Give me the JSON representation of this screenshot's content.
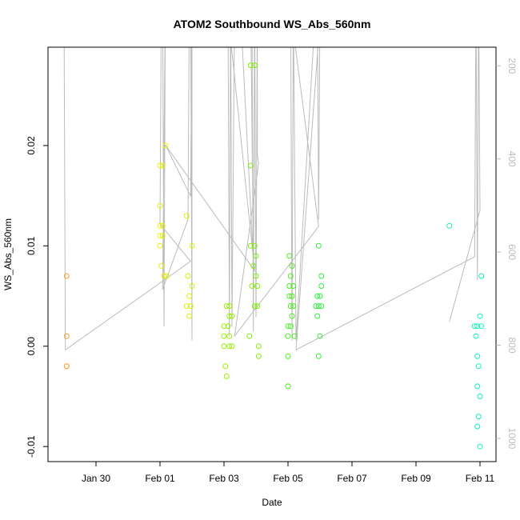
{
  "chart_data": {
    "type": "scatter",
    "title": "ATOM2 Southbound WS_Abs_560nm",
    "xlabel": "Date",
    "ylabel": "WS_Abs_560nm",
    "xlim": [
      "2017-01-28T12:00",
      "2017-02-11T12:00"
    ],
    "ylim": [
      -0.0115,
      0.0298
    ],
    "y2lim": [
      1050,
      160
    ],
    "x_ticks": [
      {
        "label": "Jan 30",
        "x": "2017-01-30"
      },
      {
        "label": "Feb 01",
        "x": "2017-02-01"
      },
      {
        "label": "Feb 03",
        "x": "2017-02-03"
      },
      {
        "label": "Feb 05",
        "x": "2017-02-05"
      },
      {
        "label": "Feb 07",
        "x": "2017-02-07"
      },
      {
        "label": "Feb 09",
        "x": "2017-02-09"
      },
      {
        "label": "Feb 11",
        "x": "2017-02-11"
      }
    ],
    "y_ticks": [
      {
        "label": "-0.01",
        "v": -0.01
      },
      {
        "label": "0.00",
        "v": 0.0
      },
      {
        "label": "0.01",
        "v": 0.01
      },
      {
        "label": "0.02",
        "v": 0.02
      }
    ],
    "y2_ticks": [
      {
        "label": "200",
        "v": 200
      },
      {
        "label": "400",
        "v": 400
      },
      {
        "label": "600",
        "v": 600
      },
      {
        "label": "800",
        "v": 800
      },
      {
        "label": "1000",
        "v": 1000
      }
    ],
    "grid": false,
    "colors": {
      "points_palette": [
        "#ff8c00",
        "#ffff00",
        "#7cfc00",
        "#00ff7f",
        "#00ffc8"
      ],
      "track": "#bbbbbb",
      "axis": "#000000",
      "right_axis_text": "#bbbbbb"
    },
    "points": [
      {
        "x": "2017-01-29T02:00",
        "y": 0.007,
        "color": "#ff9a2e"
      },
      {
        "x": "2017-01-29T02:00",
        "y": 0.001,
        "color": "#ff9a2e"
      },
      {
        "x": "2017-01-29T02:00",
        "y": -0.002,
        "color": "#ff9a2e"
      },
      {
        "x": "2017-01-29T02:00",
        "y": -0.002,
        "color": "#ff9a2e"
      },
      {
        "x": "2017-02-01T00:00",
        "y": 0.018,
        "color": "#e8f000"
      },
      {
        "x": "2017-02-01T02:00",
        "y": 0.018,
        "color": "#e8f000"
      },
      {
        "x": "2017-02-01T04:00",
        "y": 0.02,
        "color": "#e8f000"
      },
      {
        "x": "2017-02-01T00:00",
        "y": 0.014,
        "color": "#e8f000"
      },
      {
        "x": "2017-02-01T00:00",
        "y": 0.012,
        "color": "#e8f000"
      },
      {
        "x": "2017-02-01T02:00",
        "y": 0.012,
        "color": "#e8f000"
      },
      {
        "x": "2017-02-01T00:00",
        "y": 0.011,
        "color": "#e8f000"
      },
      {
        "x": "2017-02-01T02:00",
        "y": 0.011,
        "color": "#e8f000"
      },
      {
        "x": "2017-02-01T00:00",
        "y": 0.01,
        "color": "#e8f000"
      },
      {
        "x": "2017-02-01T01:00",
        "y": 0.008,
        "color": "#e8f000"
      },
      {
        "x": "2017-02-01T03:00",
        "y": 0.007,
        "color": "#e8f000"
      },
      {
        "x": "2017-02-01T05:00",
        "y": 0.007,
        "color": "#e8f000"
      },
      {
        "x": "2017-02-01T20:00",
        "y": 0.013,
        "color": "#dcf000"
      },
      {
        "x": "2017-02-02T00:00",
        "y": 0.01,
        "color": "#dcf000"
      },
      {
        "x": "2017-02-01T21:00",
        "y": 0.007,
        "color": "#dcf000"
      },
      {
        "x": "2017-02-02T00:00",
        "y": 0.006,
        "color": "#dcf000"
      },
      {
        "x": "2017-02-01T22:00",
        "y": 0.005,
        "color": "#dcf000"
      },
      {
        "x": "2017-02-01T20:00",
        "y": 0.004,
        "color": "#dcf000"
      },
      {
        "x": "2017-02-01T23:00",
        "y": 0.004,
        "color": "#dcf000"
      },
      {
        "x": "2017-02-01T22:00",
        "y": 0.003,
        "color": "#dcf000"
      },
      {
        "x": "2017-02-03T02:00",
        "y": 0.004,
        "color": "#9aee00"
      },
      {
        "x": "2017-02-03T04:00",
        "y": 0.004,
        "color": "#9aee00"
      },
      {
        "x": "2017-02-03T04:00",
        "y": 0.003,
        "color": "#9aee00"
      },
      {
        "x": "2017-02-03T06:00",
        "y": 0.003,
        "color": "#9aee00"
      },
      {
        "x": "2017-02-03T00:00",
        "y": 0.002,
        "color": "#9aee00"
      },
      {
        "x": "2017-02-03T03:00",
        "y": 0.002,
        "color": "#9aee00"
      },
      {
        "x": "2017-02-03T00:00",
        "y": 0.001,
        "color": "#9aee00"
      },
      {
        "x": "2017-02-03T04:00",
        "y": 0.001,
        "color": "#9aee00"
      },
      {
        "x": "2017-02-03T00:00",
        "y": 0.0,
        "color": "#9aee00"
      },
      {
        "x": "2017-02-03T04:00",
        "y": 0.0,
        "color": "#9aee00"
      },
      {
        "x": "2017-02-03T06:00",
        "y": 0.0,
        "color": "#9aee00"
      },
      {
        "x": "2017-02-03T01:00",
        "y": -0.002,
        "color": "#9aee00"
      },
      {
        "x": "2017-02-03T02:00",
        "y": -0.003,
        "color": "#9aee00"
      },
      {
        "x": "2017-02-03T20:00",
        "y": 0.028,
        "color": "#7ef000"
      },
      {
        "x": "2017-02-03T23:00",
        "y": 0.028,
        "color": "#7ef000"
      },
      {
        "x": "2017-02-03T20:00",
        "y": 0.018,
        "color": "#7ef000"
      },
      {
        "x": "2017-02-03T20:00",
        "y": 0.01,
        "color": "#7ef000"
      },
      {
        "x": "2017-02-03T23:00",
        "y": 0.01,
        "color": "#7ef000"
      },
      {
        "x": "2017-02-04T00:00",
        "y": 0.009,
        "color": "#7ef000"
      },
      {
        "x": "2017-02-03T22:00",
        "y": 0.008,
        "color": "#7ef000"
      },
      {
        "x": "2017-02-04T00:00",
        "y": 0.007,
        "color": "#7ef000"
      },
      {
        "x": "2017-02-03T21:00",
        "y": 0.006,
        "color": "#7ef000"
      },
      {
        "x": "2017-02-04T01:00",
        "y": 0.006,
        "color": "#7ef000"
      },
      {
        "x": "2017-02-03T23:00",
        "y": 0.004,
        "color": "#7ef000"
      },
      {
        "x": "2017-02-04T01:00",
        "y": 0.004,
        "color": "#7ef000"
      },
      {
        "x": "2017-02-03T19:00",
        "y": 0.001,
        "color": "#7ef000"
      },
      {
        "x": "2017-02-04T02:00",
        "y": 0.0,
        "color": "#7ef000"
      },
      {
        "x": "2017-02-04T02:00",
        "y": -0.001,
        "color": "#7ef000"
      },
      {
        "x": "2017-02-05T01:00",
        "y": 0.009,
        "color": "#4aee20"
      },
      {
        "x": "2017-02-05T03:00",
        "y": 0.008,
        "color": "#4aee20"
      },
      {
        "x": "2017-02-05T02:00",
        "y": 0.007,
        "color": "#4aee20"
      },
      {
        "x": "2017-02-05T01:00",
        "y": 0.006,
        "color": "#4aee20"
      },
      {
        "x": "2017-02-05T04:00",
        "y": 0.006,
        "color": "#4aee20"
      },
      {
        "x": "2017-02-05T01:00",
        "y": 0.005,
        "color": "#4aee20"
      },
      {
        "x": "2017-02-05T03:00",
        "y": 0.005,
        "color": "#4aee20"
      },
      {
        "x": "2017-02-05T02:00",
        "y": 0.004,
        "color": "#4aee20"
      },
      {
        "x": "2017-02-05T04:00",
        "y": 0.004,
        "color": "#4aee20"
      },
      {
        "x": "2017-02-05T03:00",
        "y": 0.003,
        "color": "#4aee20"
      },
      {
        "x": "2017-02-05T00:00",
        "y": 0.002,
        "color": "#4aee20"
      },
      {
        "x": "2017-02-05T02:00",
        "y": 0.002,
        "color": "#4aee20"
      },
      {
        "x": "2017-02-05T00:00",
        "y": 0.001,
        "color": "#4aee20"
      },
      {
        "x": "2017-02-05T05:00",
        "y": 0.001,
        "color": "#4aee20"
      },
      {
        "x": "2017-02-05T00:00",
        "y": -0.001,
        "color": "#4aee20"
      },
      {
        "x": "2017-02-05T00:00",
        "y": -0.004,
        "color": "#4aee20"
      },
      {
        "x": "2017-02-05T23:00",
        "y": 0.01,
        "color": "#30ee40"
      },
      {
        "x": "2017-02-06T01:00",
        "y": 0.007,
        "color": "#30ee40"
      },
      {
        "x": "2017-02-06T01:00",
        "y": 0.006,
        "color": "#30ee40"
      },
      {
        "x": "2017-02-05T22:00",
        "y": 0.005,
        "color": "#30ee40"
      },
      {
        "x": "2017-02-06T00:00",
        "y": 0.005,
        "color": "#30ee40"
      },
      {
        "x": "2017-02-05T21:00",
        "y": 0.004,
        "color": "#30ee40"
      },
      {
        "x": "2017-02-05T23:00",
        "y": 0.004,
        "color": "#30ee40"
      },
      {
        "x": "2017-02-06T01:00",
        "y": 0.004,
        "color": "#30ee40"
      },
      {
        "x": "2017-02-05T22:00",
        "y": 0.003,
        "color": "#30ee40"
      },
      {
        "x": "2017-02-06T00:00",
        "y": 0.001,
        "color": "#30ee40"
      },
      {
        "x": "2017-02-05T23:00",
        "y": -0.001,
        "color": "#30ee40"
      },
      {
        "x": "2017-02-10T01:00",
        "y": 0.012,
        "color": "#18f0a0"
      },
      {
        "x": "2017-02-10T20:00",
        "y": 0.002,
        "color": "#10f0c0"
      },
      {
        "x": "2017-02-10T22:00",
        "y": 0.002,
        "color": "#10f0c0"
      },
      {
        "x": "2017-02-11T01:00",
        "y": 0.002,
        "color": "#10f0c0"
      },
      {
        "x": "2017-02-11T00:00",
        "y": 0.003,
        "color": "#10f0c0"
      },
      {
        "x": "2017-02-11T01:00",
        "y": 0.007,
        "color": "#10f0c0"
      },
      {
        "x": "2017-02-10T21:00",
        "y": 0.001,
        "color": "#10f0c0"
      },
      {
        "x": "2017-02-10T22:00",
        "y": -0.001,
        "color": "#10f0c0"
      },
      {
        "x": "2017-02-10T23:00",
        "y": -0.002,
        "color": "#10f0c0"
      },
      {
        "x": "2017-02-10T22:00",
        "y": -0.004,
        "color": "#10f0c0"
      },
      {
        "x": "2017-02-11T00:00",
        "y": -0.005,
        "color": "#10f0c0"
      },
      {
        "x": "2017-02-10T23:00",
        "y": -0.007,
        "color": "#10f0c0"
      },
      {
        "x": "2017-02-10T22:00",
        "y": -0.008,
        "color": "#10f0c0"
      },
      {
        "x": "2017-02-11T00:00",
        "y": -0.01,
        "color": "#10f0c0"
      }
    ],
    "track": [
      [
        "2017-01-29T00:00",
        60
      ],
      [
        "2017-01-29T01:00",
        810
      ],
      [
        "2017-02-01T23:00",
        620
      ],
      [
        "2017-02-01T00:00",
        540
      ],
      [
        "2017-02-01T01:00",
        60
      ],
      [
        "2017-02-01T02:00",
        60
      ],
      [
        "2017-02-01T03:00",
        760
      ],
      [
        "2017-02-01T04:00",
        60
      ],
      [
        "2017-02-01T02:00",
        680
      ],
      [
        "2017-02-01T21:00",
        530
      ],
      [
        "2017-02-01T22:00",
        60
      ],
      [
        "2017-02-01T23:00",
        60
      ],
      [
        "2017-02-02T00:00",
        790
      ],
      [
        "2017-02-02T00:00",
        60
      ],
      [
        "2017-02-01T23:00",
        480
      ],
      [
        "2017-02-01T04:00",
        370
      ],
      [
        "2017-02-03T23:00",
        640
      ],
      [
        "2017-02-03T02:00",
        60
      ],
      [
        "2017-02-03T03:00",
        60
      ],
      [
        "2017-02-03T04:00",
        780
      ],
      [
        "2017-02-03T05:00",
        60
      ],
      [
        "2017-02-03T06:00",
        760
      ],
      [
        "2017-02-03T08:00",
        60
      ],
      [
        "2017-02-03T12:00",
        60
      ],
      [
        "2017-02-03T22:00",
        620
      ],
      [
        "2017-02-03T20:00",
        60
      ],
      [
        "2017-02-03T21:00",
        60
      ],
      [
        "2017-02-03T22:00",
        770
      ],
      [
        "2017-02-03T23:00",
        60
      ],
      [
        "2017-02-04T00:00",
        740
      ],
      [
        "2017-02-04T01:00",
        60
      ],
      [
        "2017-02-04T01:00",
        390
      ],
      [
        "2017-02-04T02:00",
        410
      ],
      [
        "2017-02-03T08:00",
        780
      ],
      [
        "2017-02-05T23:00",
        545
      ],
      [
        "2017-02-05T01:00",
        60
      ],
      [
        "2017-02-05T02:00",
        60
      ],
      [
        "2017-02-05T03:00",
        790
      ],
      [
        "2017-02-05T04:00",
        60
      ],
      [
        "2017-02-05T06:00",
        790
      ],
      [
        "2017-02-05T21:00",
        60
      ],
      [
        "2017-02-05T22:00",
        60
      ],
      [
        "2017-02-05T23:00",
        530
      ],
      [
        "2017-02-06T00:00",
        60
      ],
      [
        "2017-02-06T01:00",
        60
      ],
      [
        "2017-02-05T06:00",
        810
      ],
      [
        "2017-02-10T20:00",
        610
      ],
      [
        "2017-02-10T21:00",
        60
      ],
      [
        "2017-02-10T22:00",
        660
      ],
      [
        "2017-02-10T23:00",
        60
      ],
      [
        "2017-02-11T00:00",
        510
      ],
      [
        "2017-02-10T01:00",
        750
      ]
    ]
  }
}
